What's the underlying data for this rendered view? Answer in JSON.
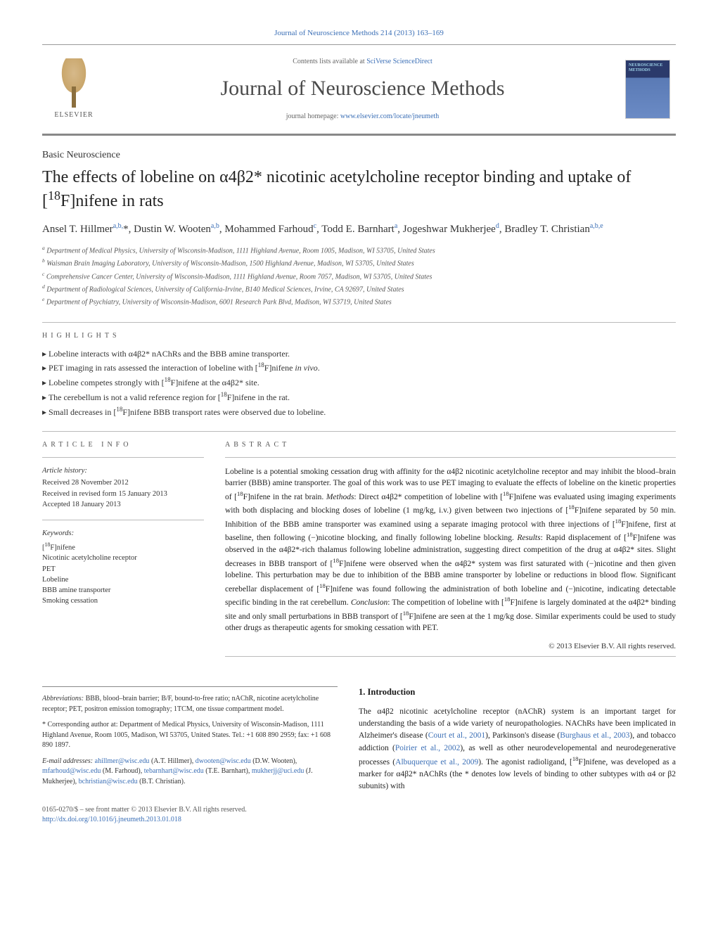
{
  "citation": {
    "text": "Journal of Neuroscience Methods 214 (2013) 163–169",
    "link_text": "Journal of Neuroscience Methods 214 (2013) 163–169"
  },
  "header": {
    "elsevier": "ELSEVIER",
    "contents_prefix": "Contents lists available at ",
    "contents_link": "SciVerse ScienceDirect",
    "journal": "Journal of Neuroscience Methods",
    "homepage_prefix": "journal homepage: ",
    "homepage_link": "www.elsevier.com/locate/jneumeth",
    "cover_label": "NEUROSCIENCE\nMETHODS"
  },
  "section_label": "Basic Neuroscience",
  "title_html": "The effects of lobeline on α4β2* nicotinic acetylcholine receptor binding and uptake of [<sup>18</sup>F]nifene in rats",
  "authors_html": "Ansel T. Hillmer<sup><a class='author-link'>a</a>,<a class='author-link'>b</a>,</sup>*, Dustin W. Wooten<sup><a class='author-link'>a</a>,<a class='author-link'>b</a></sup>, Mohammed Farhoud<sup><a class='author-link'>c</a></sup>, Todd E. Barnhart<sup><a class='author-link'>a</a></sup>, Jogeshwar Mukherjee<sup><a class='author-link'>d</a></sup>, Bradley T. Christian<sup><a class='author-link'>a</a>,<a class='author-link'>b</a>,<a class='author-link'>e</a></sup>",
  "affiliations": [
    "a Department of Medical Physics, University of Wisconsin-Madison, 1111 Highland Avenue, Room 1005, Madison, WI 53705, United States",
    "b Waisman Brain Imaging Laboratory, University of Wisconsin-Madison, 1500 Highland Avenue, Madison, WI 53705, United States",
    "c Comprehensive Cancer Center, University of Wisconsin-Madison, 1111 Highland Avenue, Room 7057, Madison, WI 53705, United States",
    "d Department of Radiological Sciences, University of California-Irvine, B140 Medical Sciences, Irvine, CA 92697, United States",
    "e Department of Psychiatry, University of Wisconsin-Madison, 6001 Research Park Blvd, Madison, WI 53719, United States"
  ],
  "highlights": {
    "heading": "HIGHLIGHTS",
    "items": [
      "Lobeline interacts with α4β2* nAChRs and the BBB amine transporter.",
      "PET imaging in rats assessed the interaction of lobeline with [<sup>18</sup>F]nifene <i>in vivo</i>.",
      "Lobeline competes strongly with [<sup>18</sup>F]nifene at the α4β2* site.",
      "The cerebellum is not a valid reference region for [<sup>18</sup>F]nifene in the rat.",
      "Small decreases in [<sup>18</sup>F]nifene BBB transport rates were observed due to lobeline."
    ]
  },
  "article_info": {
    "heading": "ARTICLE INFO",
    "history_label": "Article history:",
    "history": [
      "Received 28 November 2012",
      "Received in revised form 15 January 2013",
      "Accepted 18 January 2013"
    ],
    "keywords_label": "Keywords:",
    "keywords": [
      "[<sup>18</sup>F]nifene",
      "Nicotinic acetylcholine receptor",
      "PET",
      "Lobeline",
      "BBB amine transporter",
      "Smoking cessation"
    ]
  },
  "abstract": {
    "heading": "ABSTRACT",
    "body_html": "Lobeline is a potential smoking cessation drug with affinity for the α4β2 nicotinic acetylcholine receptor and may inhibit the blood–brain barrier (BBB) amine transporter. The goal of this work was to use PET imaging to evaluate the effects of lobeline on the kinetic properties of [<sup>18</sup>F]nifene in the rat brain. <i>Methods</i>: Direct α4β2* competition of lobeline with [<sup>18</sup>F]nifene was evaluated using imaging experiments with both displacing and blocking doses of lobeline (1 mg/kg, i.v.) given between two injections of [<sup>18</sup>F]nifene separated by 50 min. Inhibition of the BBB amine transporter was examined using a separate imaging protocol with three injections of [<sup>18</sup>F]nifene, first at baseline, then following (−)nicotine blocking, and finally following lobeline blocking. <i>Results</i>: Rapid displacement of [<sup>18</sup>F]nifene was observed in the α4β2*-rich thalamus following lobeline administration, suggesting direct competition of the drug at α4β2* sites. Slight decreases in BBB transport of [<sup>18</sup>F]nifene were observed when the α4β2* system was first saturated with (−)nicotine and then given lobeline. This perturbation may be due to inhibition of the BBB amine transporter by lobeline or reductions in blood flow. Significant cerebellar displacement of [<sup>18</sup>F]nifene was found following the administration of both lobeline and (−)nicotine, indicating detectable specific binding in the rat cerebellum. <i>Conclusion</i>: The competition of lobeline with [<sup>18</sup>F]nifene is largely dominated at the α4β2* binding site and only small perturbations in BBB transport of [<sup>18</sup>F]nifene are seen at the 1 mg/kg dose. Similar experiments could be used to study other drugs as therapeutic agents for smoking cessation with PET.",
    "copyright": "© 2013 Elsevier B.V. All rights reserved."
  },
  "footnotes": {
    "abbrev_label": "Abbreviations:",
    "abbrev_text": " BBB, blood–brain barrier; B/F, bound-to-free ratio; nAChR, nicotine acetylcholine receptor; PET, positron emission tomography; 1TCM, one tissue compartment model.",
    "corr_label": "* Corresponding author at:",
    "corr_text": " Department of Medical Physics, University of Wisconsin-Madison, 1111 Highland Avenue, Room 1005, Madison, WI 53705, United States. Tel.: +1 608 890 2959; fax: +1 608 890 1897.",
    "emails_label": "E-mail addresses:",
    "emails_html": " <a>ahillmer@wisc.edu</a> (A.T. Hillmer), <a>dwooten@wisc.edu</a> (D.W. Wooten), <a>mfarhoud@wisc.edu</a> (M. Farhoud), <a>tebarnhart@wisc.edu</a> (T.E. Barnhart), <a>mukherjj@uci.edu</a> (J. Mukherjee), <a>bchristian@wisc.edu</a> (B.T. Christian)."
  },
  "intro": {
    "heading": "1. Introduction",
    "body_html": "The α4β2 nicotinic acetylcholine receptor (nAChR) system is an important target for understanding the basis of a wide variety of neuropathologies. NAChRs have been implicated in Alzheimer's disease (<a>Court et al., 2001</a>), Parkinson's disease (<a>Burghaus et al., 2003</a>), and tobacco addiction (<a>Poirier et al., 2002</a>), as well as other neurodevelopemental and neurodegenerative processes (<a>Albuquerque et al., 2009</a>). The agonist radioligand, [<sup>18</sup>F]nifene, was developed as a marker for α4β2* nAChRs (the * denotes low levels of binding to other subtypes with α4 or β2 subunits) with"
  },
  "footer": {
    "line1": "0165-0270/$ – see front matter © 2013 Elsevier B.V. All rights reserved.",
    "doi": "http://dx.doi.org/10.1016/j.jneumeth.2013.01.018"
  },
  "colors": {
    "link": "#3b6fb6",
    "text": "#1a1a1a",
    "muted": "#555555",
    "rule": "#bbbbbb"
  }
}
